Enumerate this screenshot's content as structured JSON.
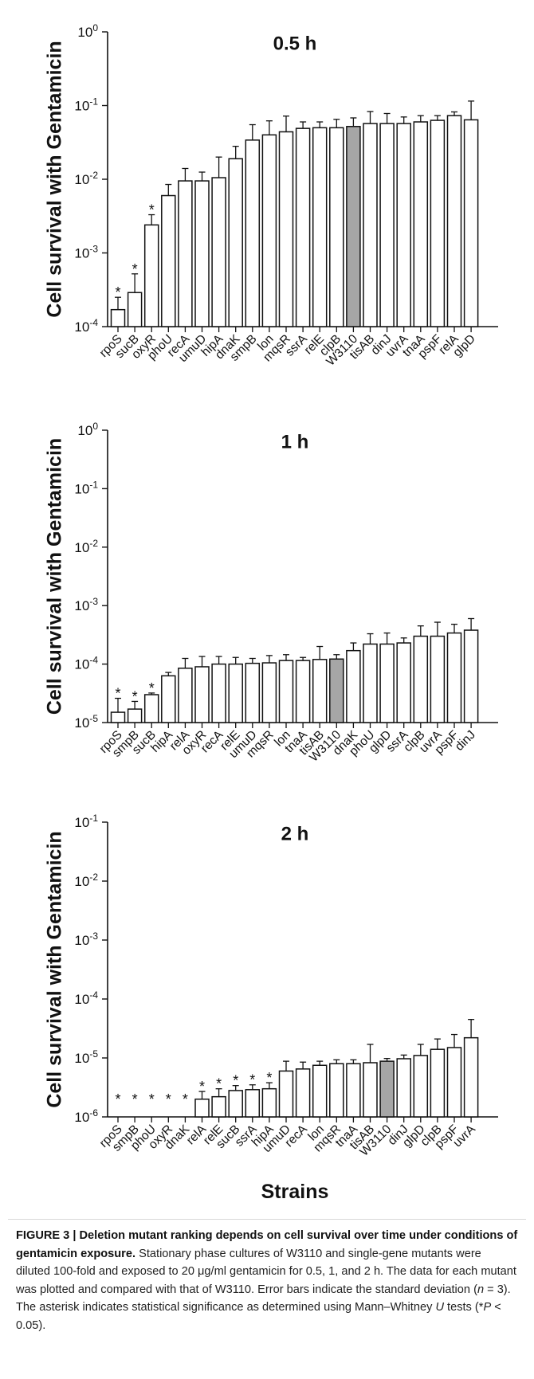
{
  "figure": {
    "caption_title": "FIGURE 3 | Deletion mutant ranking depends on cell survival over time under conditions of gentamicin exposure.",
    "caption_text_1": "Stationary phase cultures of W3110 and single-gene mutants were diluted 100-fold and exposed to 20 μg/ml gentamicin for 0.5, 1, and 2 h. The data for each mutant was plotted and compared with that of W3110. Error bars indicate the standard deviation (",
    "caption_n": "n",
    "caption_text_2": " = 3). The asterisk indicates statistical significance as determined using Mann–Whitney ",
    "caption_U": "U",
    "caption_text_3": " tests (*",
    "caption_P": "P",
    "caption_text_4": " < 0.05)."
  },
  "colors": {
    "bar": "#ffffff",
    "control_bar": "#a6a6a6",
    "stroke": "#111111"
  },
  "chart_data": [
    {
      "type": "bar",
      "title": "0.5 h",
      "ylabel": "Cell survival with Gentamicin",
      "xlabel": "",
      "yscale": "log",
      "ylim": [
        0.0001,
        1
      ],
      "ytick_labels": [
        {
          "base": "10",
          "exp": "0"
        },
        {
          "base": "10",
          "exp": "-1"
        },
        {
          "base": "10",
          "exp": "-2"
        },
        {
          "base": "10",
          "exp": "-3"
        },
        {
          "base": "10",
          "exp": "-4"
        }
      ],
      "ytick_values": [
        1,
        0.1,
        0.01,
        0.001,
        0.0001
      ],
      "control": "W3110",
      "categories": [
        "rpoS",
        "sucB",
        "oxyR",
        "phoU",
        "recA",
        "umuD",
        "hipA",
        "dnaK",
        "smpB",
        "lon",
        "mqsR",
        "ssrA",
        "relE",
        "clpB",
        "W3110",
        "tisAB",
        "dinJ",
        "uvrA",
        "tnaA",
        "pspF",
        "relA",
        "glpD"
      ],
      "values": [
        0.00017,
        0.00029,
        0.0024,
        0.006,
        0.0095,
        0.0095,
        0.0105,
        0.019,
        0.034,
        0.04,
        0.044,
        0.049,
        0.05,
        0.05,
        0.052,
        0.057,
        0.057,
        0.057,
        0.06,
        0.063,
        0.073,
        0.064
      ],
      "errors_upper": [
        0.00025,
        0.00052,
        0.0033,
        0.0085,
        0.014,
        0.0125,
        0.02,
        0.028,
        0.055,
        0.062,
        0.072,
        0.06,
        0.06,
        0.065,
        0.068,
        0.083,
        0.078,
        0.07,
        0.073,
        0.073,
        0.082,
        0.115
      ],
      "significant": [
        true,
        true,
        true,
        false,
        false,
        false,
        false,
        false,
        false,
        false,
        false,
        false,
        false,
        false,
        false,
        false,
        false,
        false,
        false,
        false,
        false,
        false
      ]
    },
    {
      "type": "bar",
      "title": "1 h",
      "ylabel": "Cell survival with Gentamicin",
      "xlabel": "",
      "yscale": "log",
      "ylim": [
        1e-05,
        1
      ],
      "ytick_labels": [
        {
          "base": "10",
          "exp": "0"
        },
        {
          "base": "10",
          "exp": "-1"
        },
        {
          "base": "10",
          "exp": "-2"
        },
        {
          "base": "10",
          "exp": "-3"
        },
        {
          "base": "10",
          "exp": "-4"
        },
        {
          "base": "10",
          "exp": "-5"
        }
      ],
      "ytick_values": [
        1,
        0.1,
        0.01,
        0.001,
        0.0001,
        1e-05
      ],
      "control": "W3110",
      "categories": [
        "rpoS",
        "smpB",
        "sucB",
        "hipA",
        "relA",
        "oxyR",
        "recA",
        "relE",
        "umuD",
        "mqsR",
        "lon",
        "tnaA",
        "tisAB",
        "W3110",
        "dnaK",
        "phoU",
        "glpD",
        "ssrA",
        "clpB",
        "uvrA",
        "pspF",
        "dinJ"
      ],
      "values": [
        1.5e-05,
        1.7e-05,
        3e-05,
        6.3e-05,
        8.5e-05,
        9e-05,
        0.0001,
        0.0001,
        0.000103,
        0.000105,
        0.000115,
        0.000115,
        0.00012,
        0.000122,
        0.00017,
        0.00022,
        0.00022,
        0.00023,
        0.0003,
        0.0003,
        0.00034,
        0.00038
      ],
      "errors_upper": [
        2.6e-05,
        2.3e-05,
        3.2e-05,
        7.2e-05,
        0.000125,
        0.000135,
        0.000135,
        0.00013,
        0.000125,
        0.00014,
        0.000145,
        0.00013,
        0.0002,
        0.000145,
        0.00023,
        0.00033,
        0.00034,
        0.00028,
        0.00045,
        0.00052,
        0.00048,
        0.0006
      ],
      "significant": [
        true,
        true,
        true,
        false,
        false,
        false,
        false,
        false,
        false,
        false,
        false,
        false,
        false,
        false,
        false,
        false,
        false,
        false,
        false,
        false,
        false,
        false
      ]
    },
    {
      "type": "bar",
      "title": "2 h",
      "ylabel": "Cell survival with Gentamicin",
      "xlabel": "Strains",
      "yscale": "log",
      "ylim": [
        1e-06,
        0.1
      ],
      "ytick_labels": [
        {
          "base": "10",
          "exp": "-1"
        },
        {
          "base": "10",
          "exp": "-2"
        },
        {
          "base": "10",
          "exp": "-3"
        },
        {
          "base": "10",
          "exp": "-4"
        },
        {
          "base": "10",
          "exp": "-5"
        },
        {
          "base": "10",
          "exp": "-6"
        }
      ],
      "ytick_values": [
        0.1,
        0.01,
        0.001,
        0.0001,
        1e-05,
        1e-06
      ],
      "control": "W3110",
      "categories": [
        "rpoS",
        "smpB",
        "phoU",
        "oxyR",
        "dnaK",
        "relA",
        "relE",
        "sucB",
        "ssrA",
        "hipA",
        "umuD",
        "recA",
        "lon",
        "mqsR",
        "tnaA",
        "tisAB",
        "W3110",
        "dinJ",
        "glpD",
        "clpB",
        "pspF",
        "uvrA"
      ],
      "values": [
        null,
        null,
        null,
        null,
        null,
        2e-06,
        2.2e-06,
        2.8e-06,
        2.9e-06,
        3e-06,
        6e-06,
        6.5e-06,
        7.5e-06,
        8e-06,
        8e-06,
        8.3e-06,
        8.8e-06,
        9.7e-06,
        1.1e-05,
        1.4e-05,
        1.5e-05,
        2.2e-05
      ],
      "errors_upper": [
        null,
        null,
        null,
        null,
        null,
        2.7e-06,
        3e-06,
        3.4e-06,
        3.5e-06,
        3.8e-06,
        8.8e-06,
        8.5e-06,
        8.8e-06,
        9.3e-06,
        9.3e-06,
        1.7e-05,
        9.8e-06,
        1.12e-05,
        1.7e-05,
        2.1e-05,
        2.5e-05,
        4.5e-05
      ],
      "significant": [
        true,
        true,
        true,
        true,
        true,
        true,
        true,
        true,
        true,
        true,
        false,
        false,
        false,
        false,
        false,
        false,
        false,
        false,
        false,
        false,
        false,
        false
      ]
    }
  ]
}
